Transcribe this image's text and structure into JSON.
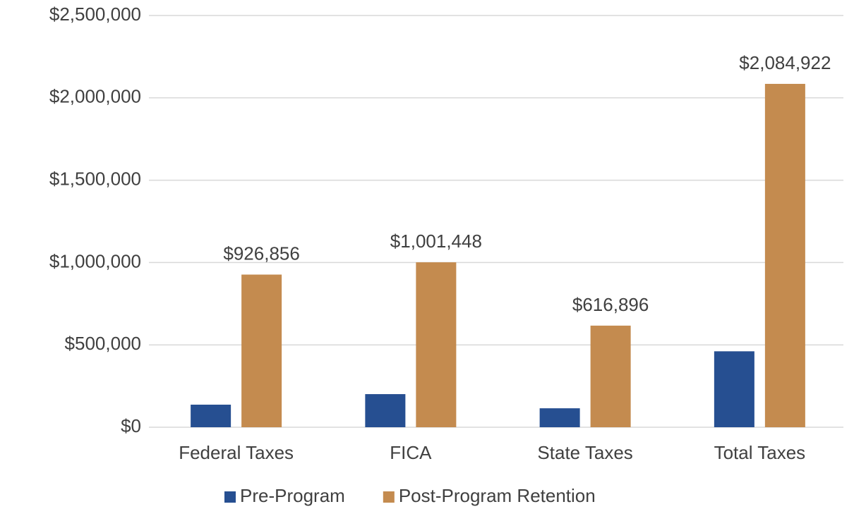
{
  "chart_data": {
    "type": "bar",
    "categories": [
      "Federal Taxes",
      "FICA",
      "State Taxes",
      "Total Taxes"
    ],
    "series": [
      {
        "name": "Pre-Program",
        "color": "#264f91",
        "values": [
          137000,
          201000,
          115000,
          461000
        ]
      },
      {
        "name": "Post-Program Retention",
        "color": "#c48b4f",
        "values": [
          926856,
          1001448,
          616896,
          2084922
        ],
        "value_labels": [
          "$926,856",
          "$1,001,448",
          "$616,896",
          "$2,084,922"
        ]
      }
    ],
    "ylim": [
      0,
      2500000
    ],
    "yticks": [
      {
        "value": 0,
        "label": "$0"
      },
      {
        "value": 500000,
        "label": "$500,000"
      },
      {
        "value": 1000000,
        "label": "$1,000,000"
      },
      {
        "value": 1500000,
        "label": "$1,500,000"
      },
      {
        "value": 2000000,
        "label": "$2,000,000"
      },
      {
        "value": 2500000,
        "label": "$2,500,000"
      }
    ],
    "grid": true,
    "legend": "bottom"
  }
}
